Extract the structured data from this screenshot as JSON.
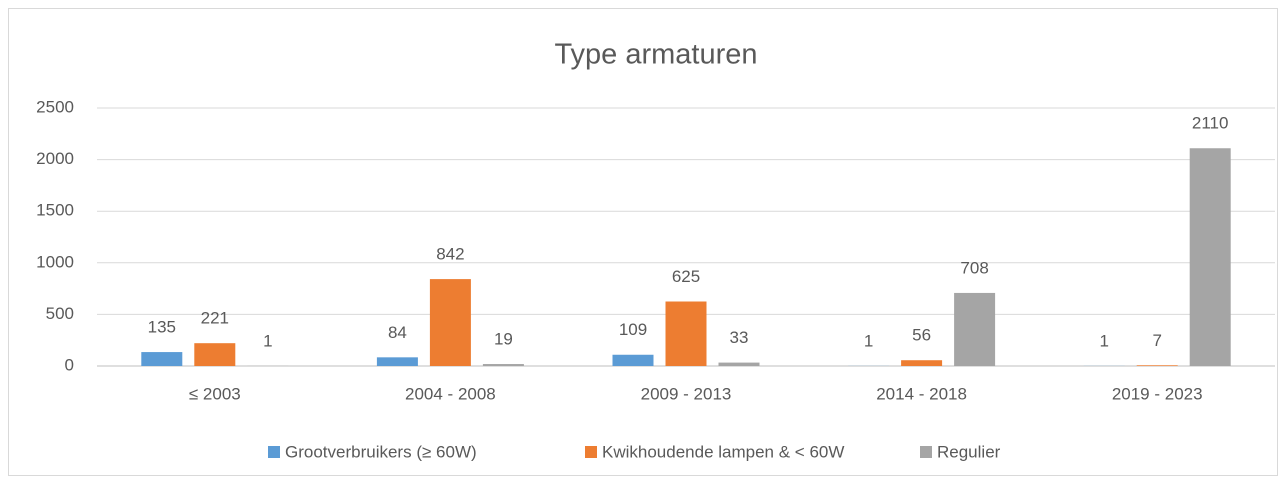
{
  "chart_data": {
    "type": "bar",
    "title": "Type armaturen",
    "categories": [
      "≤ 2003",
      "2004 - 2008",
      "2009 - 2013",
      "2014 - 2018",
      "2019 - 2023"
    ],
    "series": [
      {
        "name": "Grootverbruikers (≥ 60W)",
        "color": "#5b9bd5",
        "values": [
          135,
          84,
          109,
          1,
          1
        ]
      },
      {
        "name": "Kwikhoudende lampen & < 60W",
        "color": "#ed7d31",
        "values": [
          221,
          842,
          625,
          56,
          7
        ]
      },
      {
        "name": "Regulier",
        "color": "#a5a5a5",
        "values": [
          1,
          19,
          33,
          708,
          2110
        ]
      }
    ],
    "ylim": [
      0,
      2500
    ],
    "yticks": [
      0,
      500,
      1000,
      1500,
      2000,
      2500
    ],
    "grid": true,
    "legend": "bottom"
  }
}
